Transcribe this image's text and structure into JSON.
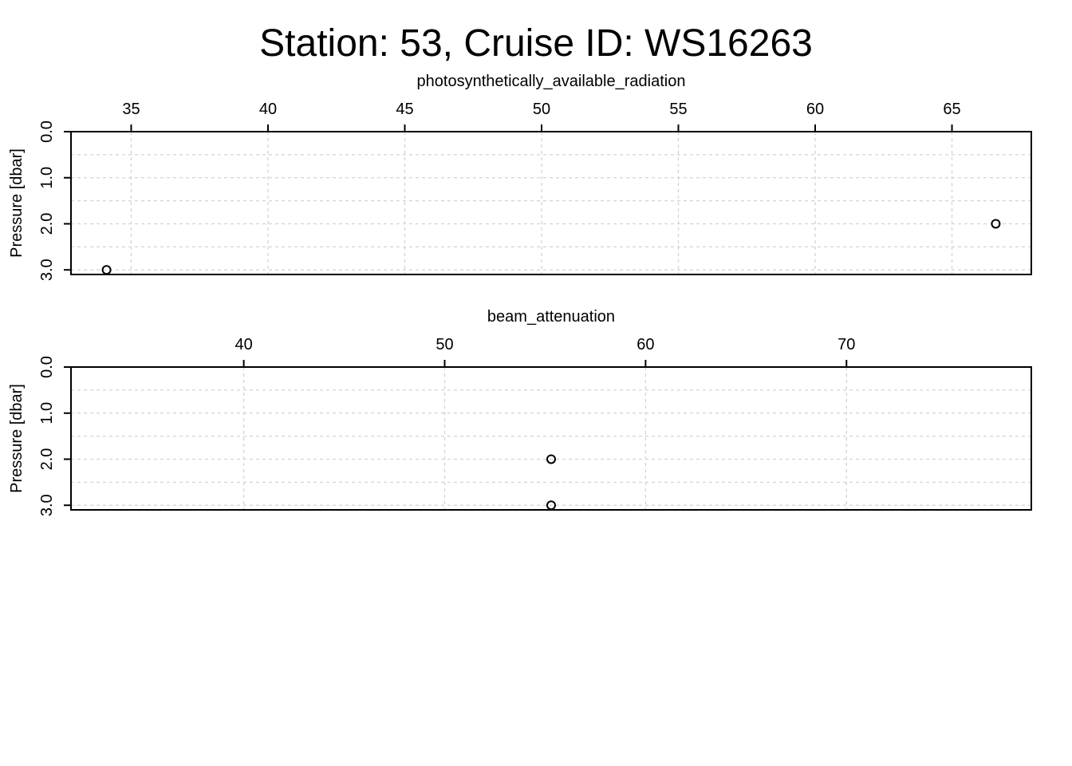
{
  "figure": {
    "title": "Station: 53, Cruise ID: WS16263"
  },
  "chart_data": [
    {
      "type": "scatter",
      "xlabel": "photosynthetically_available_radiation",
      "ylabel": "Pressure [dbar]",
      "x_axis_position": "top",
      "y_reversed": true,
      "xlim": [
        32.8,
        67.9
      ],
      "ylim": [
        0,
        3.1
      ],
      "xticks": [
        35,
        40,
        45,
        50,
        55,
        60,
        65
      ],
      "xtick_labels": [
        "35",
        "40",
        "45",
        "50",
        "55",
        "60",
        "65"
      ],
      "yticks": [
        0,
        1,
        2,
        3
      ],
      "ytick_labels": [
        "0.0",
        "1.0",
        "2.0",
        "3.0"
      ],
      "ygrid": [
        0,
        0.5,
        1,
        1.5,
        2,
        2.5,
        3
      ],
      "grid": true,
      "series": [
        {
          "x": [
            66.6,
            34.1
          ],
          "y": [
            2.0,
            3.0
          ]
        }
      ]
    },
    {
      "type": "scatter",
      "xlabel": "beam_attenuation",
      "ylabel": "Pressure [dbar]",
      "x_axis_position": "top",
      "y_reversed": true,
      "xlim": [
        31.4,
        79.2
      ],
      "ylim": [
        0,
        3.1
      ],
      "xticks": [
        40,
        50,
        60,
        70
      ],
      "xtick_labels": [
        "40",
        "50",
        "60",
        "70"
      ],
      "yticks": [
        0,
        1,
        2,
        3
      ],
      "ytick_labels": [
        "0.0",
        "1.0",
        "2.0",
        "3.0"
      ],
      "ygrid": [
        0,
        0.5,
        1,
        1.5,
        2,
        2.5,
        3
      ],
      "grid": true,
      "series": [
        {
          "x": [
            55.3,
            55.3
          ],
          "y": [
            2.0,
            3.0
          ]
        }
      ]
    }
  ]
}
